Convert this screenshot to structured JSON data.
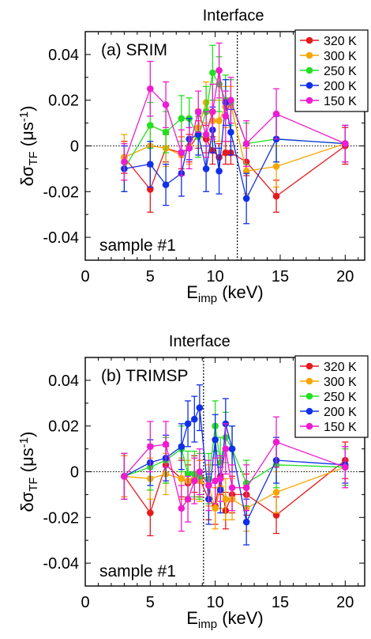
{
  "chart_data": [
    {
      "type": "scatter",
      "panel_label": "(a) SRIM",
      "sample_label": "sample #1",
      "interface_label": "Interface",
      "interface_x": 11.7,
      "ylabel_main": "δσ",
      "ylabel_sub": "TF",
      "ylabel_unit": " (μs",
      "ylabel_exp": "-1",
      "ylabel_close": ")",
      "xlabel_main": "E",
      "xlabel_sub": "imp",
      "xlabel_unit": " (keV)",
      "xlim": [
        0,
        21.5
      ],
      "ylim": [
        -0.05,
        0.05
      ],
      "xticks": [
        0,
        5,
        10,
        15,
        20
      ],
      "yticks": [
        0.04,
        0.02,
        0,
        -0.02,
        -0.04
      ],
      "ytick_labels": [
        "0.04",
        "0.02",
        "0",
        "-0.02",
        "-0.04"
      ],
      "grid": false,
      "legend_position": "top-right",
      "series": [
        {
          "name": "320 K",
          "color": "#e8191c",
          "x": [
            3,
            5,
            6.2,
            7.4,
            8,
            8.7,
            9.3,
            9.8,
            10.3,
            10.8,
            11.2,
            12.4,
            14.7,
            20
          ],
          "y": [
            -0.005,
            -0.019,
            -0.001,
            -0.003,
            -0.001,
            0.005,
            0.003,
            -0.002,
            -0.005,
            -0.003,
            -0.003,
            -0.007,
            -0.022,
            0.0
          ],
          "err": [
            0.007,
            0.01,
            0.006,
            0.007,
            0.006,
            0.006,
            0.006,
            0.006,
            0.006,
            0.005,
            0.005,
            0.006,
            0.007,
            0.008
          ]
        },
        {
          "name": "300 K",
          "color": "#f7a600",
          "x": [
            3,
            5,
            6.2,
            7.4,
            8,
            8.7,
            9.3,
            9.8,
            10.3,
            10.8,
            11.2,
            12.4,
            14.7,
            20
          ],
          "y": [
            -0.005,
            0.0,
            -0.001,
            -0.004,
            0.0,
            0.008,
            0.019,
            0.011,
            0.011,
            0.017,
            0.018,
            -0.011,
            -0.009,
            0.001
          ],
          "err": [
            0.01,
            0.008,
            0.008,
            0.008,
            0.008,
            0.008,
            0.009,
            0.009,
            0.009,
            0.009,
            0.008,
            0.01,
            0.009,
            0.008
          ]
        },
        {
          "name": "250 K",
          "color": "#22e022",
          "x": [
            3,
            5,
            6.2,
            7.4,
            8,
            8.7,
            9.3,
            9.8,
            10.3,
            10.8,
            11.2,
            12.4,
            14.7,
            20
          ],
          "y": [
            -0.01,
            0.009,
            0.006,
            0.012,
            0.012,
            0.004,
            0.015,
            0.032,
            0.027,
            0.02,
            0.019,
            0.001,
            0.003,
            0.001
          ],
          "err": [
            0.01,
            0.01,
            0.009,
            0.01,
            0.009,
            0.009,
            0.011,
            0.012,
            0.012,
            0.011,
            0.01,
            0.009,
            0.01,
            0.008
          ]
        },
        {
          "name": "200 K",
          "color": "#1030e8",
          "x": [
            3,
            5,
            6.2,
            7.4,
            8,
            8.7,
            9.3,
            9.8,
            10.3,
            10.8,
            11.2,
            12.4,
            14.7,
            20
          ],
          "y": [
            -0.01,
            -0.008,
            -0.017,
            -0.012,
            0.003,
            0.005,
            -0.01,
            0.007,
            -0.011,
            0.019,
            0.006,
            -0.023,
            0.003,
            0.001
          ],
          "err": [
            0.01,
            0.01,
            0.009,
            0.01,
            0.009,
            0.009,
            0.01,
            0.01,
            0.01,
            0.01,
            0.01,
            0.011,
            0.01,
            0.008
          ]
        },
        {
          "name": "150 K",
          "color": "#f01ad0",
          "x": [
            3,
            5,
            6.2,
            7.4,
            8,
            8.7,
            9.3,
            9.8,
            10.3,
            10.8,
            11.2,
            12.4,
            14.7,
            20
          ],
          "y": [
            -0.007,
            0.025,
            0.018,
            -0.003,
            -0.001,
            0.015,
            0.005,
            0.015,
            0.033,
            0.013,
            0.02,
            0.001,
            0.014,
            0.001
          ],
          "err": [
            0.008,
            0.012,
            0.01,
            0.01,
            0.009,
            0.009,
            0.01,
            0.012,
            0.012,
            0.011,
            0.01,
            0.01,
            0.011,
            0.008
          ]
        }
      ]
    },
    {
      "type": "scatter",
      "panel_label": "(b) TRIMSP",
      "sample_label": "sample #1",
      "interface_label": "Interface",
      "interface_x": 9.1,
      "ylabel_main": "δσ",
      "ylabel_sub": "TF",
      "ylabel_unit": " (μs",
      "ylabel_exp": "-1",
      "ylabel_close": ")",
      "xlabel_main": "E",
      "xlabel_sub": "imp",
      "xlabel_unit": " (keV)",
      "xlim": [
        0,
        21.5
      ],
      "ylim": [
        -0.05,
        0.05
      ],
      "xticks": [
        0,
        5,
        10,
        15,
        20
      ],
      "yticks": [
        0.04,
        0.02,
        0,
        -0.02,
        -0.04
      ],
      "ytick_labels": [
        "0.04",
        "0.02",
        "0",
        "-0.02",
        "-0.04"
      ],
      "grid": false,
      "legend_position": "top-right",
      "series": [
        {
          "name": "320 K",
          "color": "#e8191c",
          "x": [
            3,
            5,
            6.2,
            7.4,
            7.9,
            8.4,
            8.8,
            9.5,
            10.0,
            10.4,
            10.8,
            11.3,
            12.4,
            14.7,
            20
          ],
          "y": [
            -0.002,
            -0.018,
            0.003,
            -0.003,
            -0.005,
            -0.001,
            -0.003,
            -0.012,
            -0.015,
            -0.002,
            -0.017,
            -0.01,
            -0.01,
            -0.019,
            0.005
          ],
          "err": [
            0.009,
            0.01,
            0.008,
            0.008,
            0.008,
            0.008,
            0.008,
            0.009,
            0.008,
            0.008,
            0.008,
            0.008,
            0.009,
            0.008,
            0.008
          ]
        },
        {
          "name": "300 K",
          "color": "#f7a600",
          "x": [
            3,
            5,
            6.2,
            7.4,
            7.9,
            8.4,
            8.8,
            9.5,
            10.0,
            10.4,
            10.8,
            11.3,
            12.4,
            14.7,
            20
          ],
          "y": [
            -0.002,
            -0.003,
            -0.001,
            -0.003,
            -0.004,
            -0.003,
            -0.004,
            -0.006,
            -0.016,
            -0.007,
            -0.012,
            -0.012,
            -0.016,
            -0.009,
            0.002
          ],
          "err": [
            0.009,
            0.009,
            0.009,
            0.009,
            0.009,
            0.009,
            0.009,
            0.009,
            0.009,
            0.009,
            0.009,
            0.009,
            0.01,
            0.009,
            0.008
          ]
        },
        {
          "name": "250 K",
          "color": "#22e022",
          "x": [
            3,
            5,
            6.2,
            7.4,
            7.9,
            8.4,
            8.8,
            9.5,
            10.0,
            10.4,
            10.8,
            11.3,
            12.4,
            14.7,
            20
          ],
          "y": [
            -0.002,
            0.002,
            0.005,
            0.01,
            -0.001,
            -0.001,
            -0.002,
            -0.003,
            0.02,
            0.004,
            0.015,
            0.01,
            -0.005,
            0.003,
            0.002
          ],
          "err": [
            0.01,
            0.01,
            0.01,
            0.01,
            0.01,
            0.01,
            0.01,
            0.011,
            0.011,
            0.011,
            0.011,
            0.01,
            0.01,
            0.01,
            0.008
          ]
        },
        {
          "name": "200 K",
          "color": "#1030e8",
          "x": [
            3,
            5,
            6.2,
            7.4,
            7.9,
            8.4,
            8.8,
            9.5,
            10.0,
            10.4,
            10.8,
            11.3,
            12.4,
            14.7,
            20
          ],
          "y": [
            -0.002,
            0.004,
            0.006,
            0.011,
            0.021,
            0.023,
            0.028,
            -0.012,
            0.014,
            -0.008,
            0.021,
            0.01,
            -0.022,
            0.005,
            0.003
          ],
          "err": [
            0.01,
            0.01,
            0.01,
            0.01,
            0.01,
            0.01,
            0.01,
            0.011,
            0.011,
            0.01,
            0.011,
            0.01,
            0.01,
            0.01,
            0.008
          ]
        },
        {
          "name": "150 K",
          "color": "#f01ad0",
          "x": [
            3,
            5,
            6.2,
            7.4,
            7.9,
            8.4,
            8.8,
            9.5,
            10.0,
            10.4,
            10.8,
            11.3,
            12.4,
            14.7,
            20
          ],
          "y": [
            -0.002,
            0.011,
            0.012,
            -0.016,
            -0.012,
            -0.004,
            0.0,
            -0.006,
            -0.004,
            -0.003,
            0.01,
            -0.007,
            -0.007,
            0.013,
            0.002
          ],
          "err": [
            0.01,
            0.011,
            0.01,
            0.01,
            0.01,
            0.01,
            0.01,
            0.011,
            0.01,
            0.01,
            0.011,
            0.01,
            0.01,
            0.011,
            0.009
          ]
        }
      ]
    }
  ]
}
